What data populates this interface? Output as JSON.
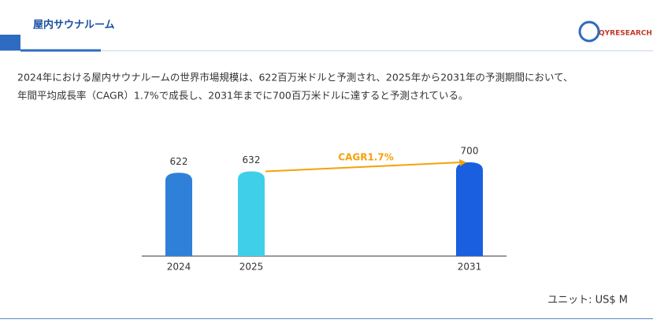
{
  "header": {
    "title": "屋内サウナルーム",
    "logo": "QYRESEARCH"
  },
  "description": [
    "2024年における屋内サウナルームの世界市場規模は、622百万米ドルと予測され、2025年から2031年の予測期間において、",
    "年間平均成長率（CAGR）1.7%で成長し、2031年までに700百万米ドルに達すると予測されている。"
  ],
  "chart_data": {
    "type": "bar",
    "categories": [
      "2024",
      "2025",
      "2031"
    ],
    "values": [
      622,
      632,
      700
    ],
    "colors": [
      "#2f80d8",
      "#3fcfe8",
      "#1a5fe0"
    ],
    "annotation": "CAGR1.7%",
    "annotation_color": "#f5a10a",
    "unit": "ユニット: US$ M"
  }
}
